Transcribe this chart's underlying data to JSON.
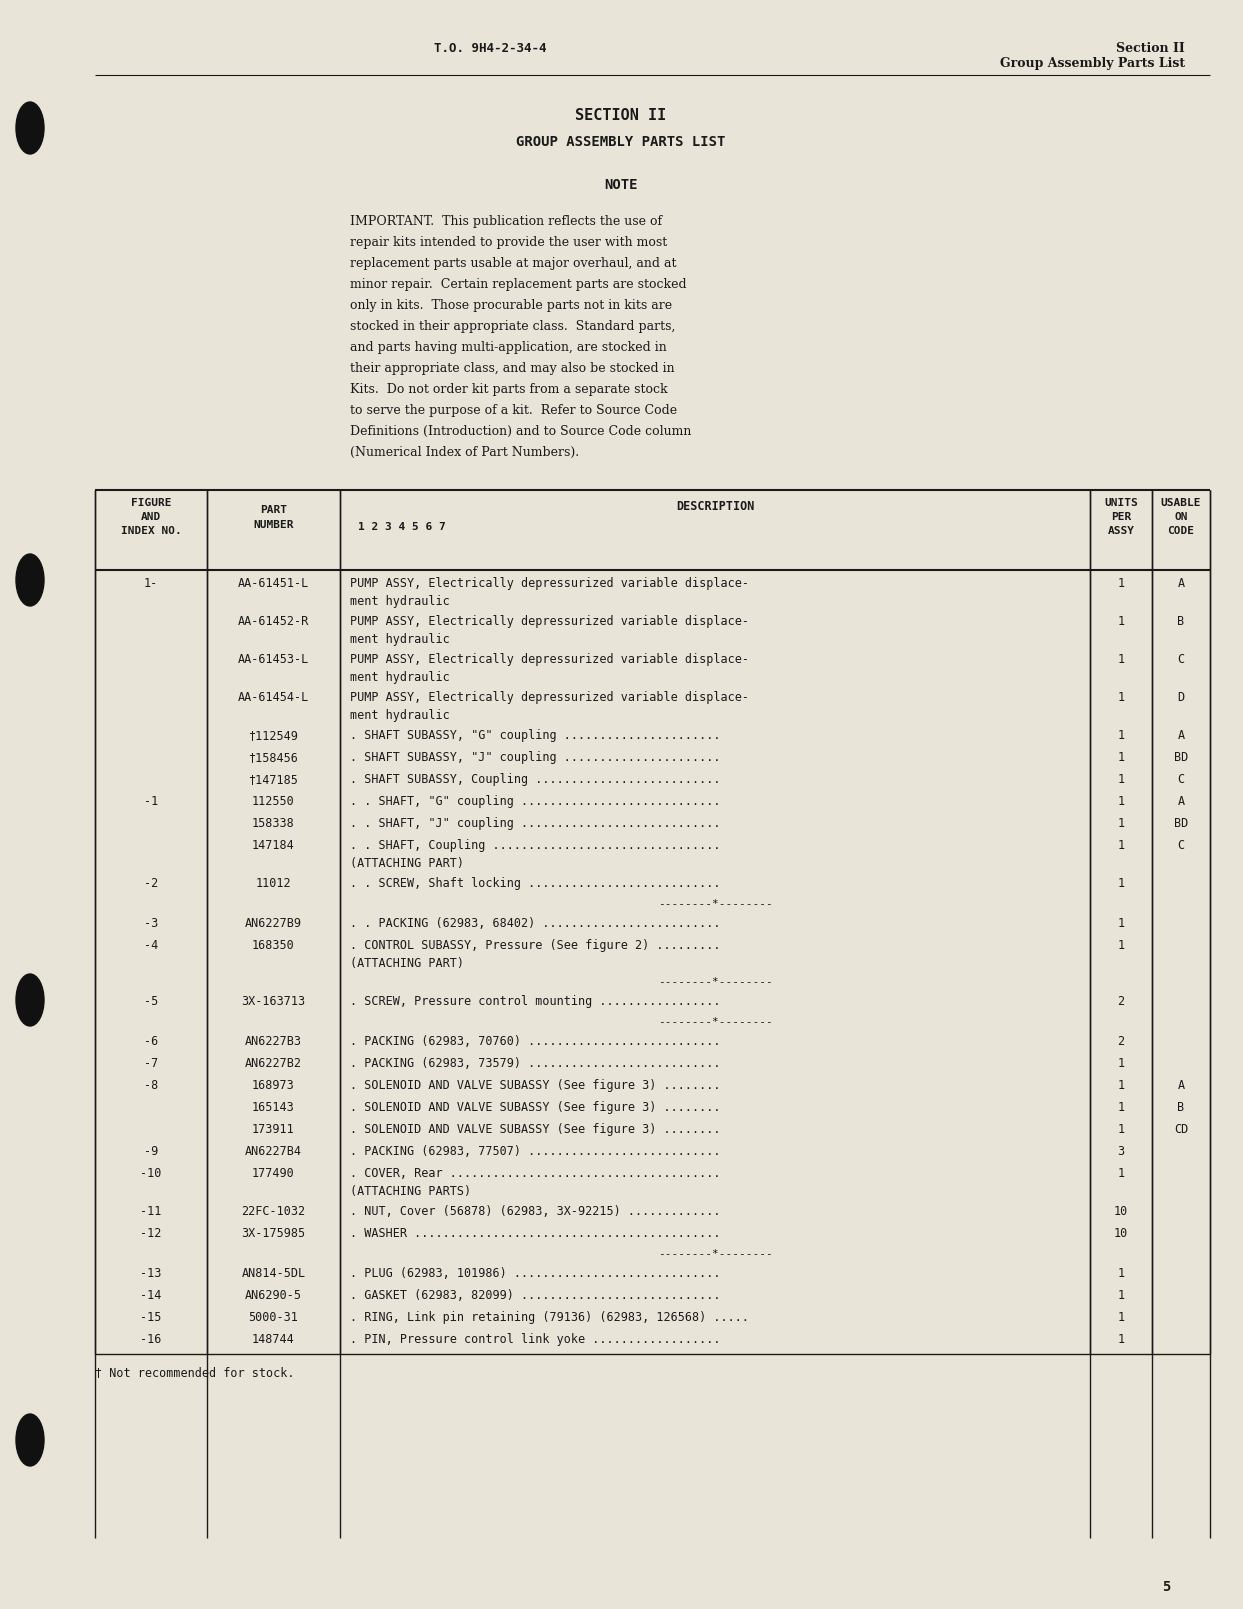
{
  "bg_color": "#e8e4d8",
  "text_color": "#1a1a1a",
  "page_num": "5",
  "header_left": "T.O. 9H4-2-34-4",
  "header_right_line1": "Section II",
  "header_right_line2": "Group Assembly Parts List",
  "section_title": "SECTION II",
  "section_subtitle": "GROUP ASSEMBLY PARTS LIST",
  "note_title": "NOTE",
  "note_lines": [
    "IMPORTANT.  This publication reflects the use of",
    "repair kits intended to provide the user with most",
    "replacement parts usable at major overhaul, and at",
    "minor repair.  Certain replacement parts are stocked",
    "only in kits.  Those procurable parts not in kits are",
    "stocked in their appropriate class.  Standard parts,",
    "and parts having multi-application, are stocked in",
    "their appropriate class, and may also be stocked in",
    "Kits.  Do not order kit parts from a separate stock",
    "to serve the purpose of a kit.  Refer to Source Code",
    "Definitions (Introduction) and to Source Code column",
    "(Numerical Index of Part Numbers)."
  ],
  "table_rows": [
    {
      "fig": "1-",
      "part": "AA-61451-L",
      "desc1": "PUMP ASSY, Electrically depressurized variable displace-",
      "desc2": "ment hydraulic",
      "units": "1",
      "code": "A"
    },
    {
      "fig": "",
      "part": "AA-61452-R",
      "desc1": "PUMP ASSY, Electrically depressurized variable displace-",
      "desc2": "ment hydraulic",
      "units": "1",
      "code": "B"
    },
    {
      "fig": "",
      "part": "AA-61453-L",
      "desc1": "PUMP ASSY, Electrically depressurized variable displace-",
      "desc2": "ment hydraulic",
      "units": "1",
      "code": "C"
    },
    {
      "fig": "",
      "part": "AA-61454-L",
      "desc1": "PUMP ASSY, Electrically depressurized variable displace-",
      "desc2": "ment hydraulic",
      "units": "1",
      "code": "D"
    },
    {
      "fig": "",
      "part": "†112549",
      "desc1": ". SHAFT SUBASSY, \"G\" coupling ......................",
      "desc2": "",
      "units": "1",
      "code": "A"
    },
    {
      "fig": "",
      "part": "†158456",
      "desc1": ". SHAFT SUBASSY, \"J\" coupling ......................",
      "desc2": "",
      "units": "1",
      "code": "BD"
    },
    {
      "fig": "",
      "part": "†147185",
      "desc1": ". SHAFT SUBASSY, Coupling ..........................",
      "desc2": "",
      "units": "1",
      "code": "C"
    },
    {
      "fig": "-1",
      "part": "112550",
      "desc1": ". . SHAFT, \"G\" coupling ............................",
      "desc2": "",
      "units": "1",
      "code": "A"
    },
    {
      "fig": "",
      "part": "158338",
      "desc1": ". . SHAFT, \"J\" coupling ............................",
      "desc2": "",
      "units": "1",
      "code": "BD"
    },
    {
      "fig": "",
      "part": "147184",
      "desc1": ". . SHAFT, Coupling ................................",
      "desc2": "(ATTACHING PART)",
      "units": "1",
      "code": "C"
    },
    {
      "fig": "-2",
      "part": "11012",
      "desc1": ". . SCREW, Shaft locking ...........................",
      "desc2": "",
      "units": "1",
      "code": ""
    },
    {
      "fig": "SEP",
      "part": "",
      "desc1": "--------*--------",
      "desc2": "",
      "units": "",
      "code": ""
    },
    {
      "fig": "-3",
      "part": "AN6227B9",
      "desc1": ". . PACKING (62983, 68402) .........................",
      "desc2": "",
      "units": "1",
      "code": ""
    },
    {
      "fig": "-4",
      "part": "168350",
      "desc1": ". CONTROL SUBASSY, Pressure (See figure 2) .........",
      "desc2": "(ATTACHING PART)",
      "units": "1",
      "code": ""
    },
    {
      "fig": "SEP",
      "part": "",
      "desc1": "--------*--------",
      "desc2": "",
      "units": "",
      "code": ""
    },
    {
      "fig": "-5",
      "part": "3X-163713",
      "desc1": ". SCREW, Pressure control mounting .................",
      "desc2": "",
      "units": "2",
      "code": ""
    },
    {
      "fig": "SEP",
      "part": "",
      "desc1": "--------*--------",
      "desc2": "",
      "units": "",
      "code": ""
    },
    {
      "fig": "-6",
      "part": "AN6227B3",
      "desc1": ". PACKING (62983, 70760) ...........................",
      "desc2": "",
      "units": "2",
      "code": ""
    },
    {
      "fig": "-7",
      "part": "AN6227B2",
      "desc1": ". PACKING (62983, 73579) ...........................",
      "desc2": "",
      "units": "1",
      "code": ""
    },
    {
      "fig": "-8",
      "part": "168973",
      "desc1": ". SOLENOID AND VALVE SUBASSY (See figure 3) ........",
      "desc2": "",
      "units": "1",
      "code": "A"
    },
    {
      "fig": "",
      "part": "165143",
      "desc1": ". SOLENOID AND VALVE SUBASSY (See figure 3) ........",
      "desc2": "",
      "units": "1",
      "code": "B"
    },
    {
      "fig": "",
      "part": "173911",
      "desc1": ". SOLENOID AND VALVE SUBASSY (See figure 3) ........",
      "desc2": "",
      "units": "1",
      "code": "CD"
    },
    {
      "fig": "-9",
      "part": "AN6227B4",
      "desc1": ". PACKING (62983, 77507) ...........................",
      "desc2": "",
      "units": "3",
      "code": ""
    },
    {
      "fig": "-10",
      "part": "177490",
      "desc1": ". COVER, Rear ......................................",
      "desc2": "(ATTACHING PARTS)",
      "units": "1",
      "code": ""
    },
    {
      "fig": "-11",
      "part": "22FC-1032",
      "desc1": ". NUT, Cover (56878) (62983, 3X-92215) .............",
      "desc2": "",
      "units": "10",
      "code": ""
    },
    {
      "fig": "-12",
      "part": "3X-175985",
      "desc1": ". WASHER ...........................................",
      "desc2": "",
      "units": "10",
      "code": ""
    },
    {
      "fig": "SEP",
      "part": "",
      "desc1": "--------*--------",
      "desc2": "",
      "units": "",
      "code": ""
    },
    {
      "fig": "-13",
      "part": "AN814-5DL",
      "desc1": ". PLUG (62983, 101986) .............................",
      "desc2": "",
      "units": "1",
      "code": ""
    },
    {
      "fig": "-14",
      "part": "AN6290-5",
      "desc1": ". GASKET (62983, 82099) ............................",
      "desc2": "",
      "units": "1",
      "code": ""
    },
    {
      "fig": "-15",
      "part": "5000-31",
      "desc1": ". RING, Link pin retaining (79136) (62983, 126568) .....",
      "desc2": "",
      "units": "1",
      "code": ""
    },
    {
      "fig": "-16",
      "part": "148744",
      "desc1": ". PIN, Pressure control link yoke ..................",
      "desc2": "",
      "units": "1",
      "code": ""
    }
  ],
  "footnote": "† Not recommended for stock."
}
